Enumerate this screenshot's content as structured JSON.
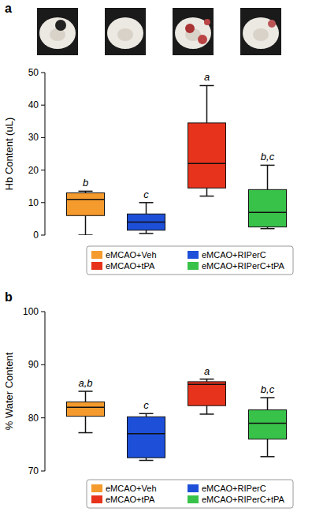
{
  "chart_data": [
    {
      "type": "box",
      "title": "a",
      "ylabel": "Hb Content (uL)",
      "ylim": [
        0,
        50
      ],
      "yticks": [
        0,
        10,
        20,
        30,
        40,
        50
      ],
      "legend": "bottom",
      "series": [
        {
          "name": "eMCAO+Veh",
          "color": "#f59a2d",
          "min": 0,
          "q1": 6,
          "median": 11,
          "q3": 13,
          "max": 13.5,
          "annotation": "b"
        },
        {
          "name": "eMCAO+RIPerC",
          "color": "#1d4fd8",
          "min": 0.5,
          "q1": 1.5,
          "median": 4,
          "q3": 6.5,
          "max": 10,
          "annotation": "c"
        },
        {
          "name": "eMCAO+tPA",
          "color": "#e8331c",
          "min": 12,
          "q1": 14.5,
          "median": 22,
          "q3": 34.5,
          "max": 46,
          "annotation": "a"
        },
        {
          "name": "eMCAO+RIPerC+tPA",
          "color": "#38c24a",
          "min": 2,
          "q1": 2.5,
          "median": 7,
          "q3": 14,
          "max": 21.5,
          "annotation": "b,c"
        }
      ]
    },
    {
      "type": "box",
      "title": "b",
      "ylabel": "% Water Content",
      "ylim": [
        70,
        100
      ],
      "yticks": [
        70,
        80,
        90,
        100
      ],
      "legend": "bottom",
      "series": [
        {
          "name": "eMCAO+Veh",
          "color": "#f59a2d",
          "min": 77.2,
          "q1": 80.3,
          "median": 82,
          "q3": 83,
          "max": 85,
          "annotation": "a,b"
        },
        {
          "name": "eMCAO+RIPerC",
          "color": "#1d4fd8",
          "min": 72,
          "q1": 72.5,
          "median": 77,
          "q3": 80.2,
          "max": 80.8,
          "annotation": "c"
        },
        {
          "name": "eMCAO+tPA",
          "color": "#e8331c",
          "min": 80.7,
          "q1": 82.3,
          "median": 86.3,
          "q3": 86.8,
          "max": 87.3,
          "annotation": "a"
        },
        {
          "name": "eMCAO+RIPerC+tPA",
          "color": "#38c24a",
          "min": 72.7,
          "q1": 76,
          "median": 79,
          "q3": 81.5,
          "max": 83.8,
          "annotation": "b,c"
        }
      ]
    }
  ]
}
